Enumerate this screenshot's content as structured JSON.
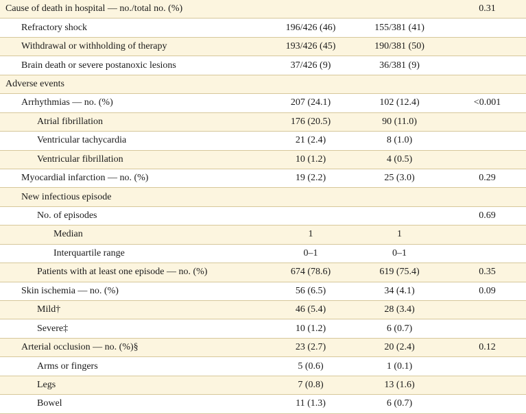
{
  "table": {
    "rows": [
      {
        "label": "Cause of death in hospital — no./total no. (%)",
        "indent": 0,
        "c1": "",
        "c2": "",
        "p": "0.31"
      },
      {
        "label": "Refractory shock",
        "indent": 1,
        "c1": "196/426 (46)",
        "c2": "155/381 (41)",
        "p": ""
      },
      {
        "label": "Withdrawal or withholding of therapy",
        "indent": 1,
        "c1": "193/426 (45)",
        "c2": "190/381 (50)",
        "p": ""
      },
      {
        "label": "Brain death or severe postanoxic lesions",
        "indent": 1,
        "c1": "37/426 (9)",
        "c2": "36/381 (9)",
        "p": ""
      },
      {
        "label": "Adverse events",
        "indent": 0,
        "c1": "",
        "c2": "",
        "p": ""
      },
      {
        "label": "Arrhythmias — no. (%)",
        "indent": 1,
        "c1": "207 (24.1)",
        "c2": "102 (12.4)",
        "p": "<0.001"
      },
      {
        "label": "Atrial fibrillation",
        "indent": 2,
        "c1": "176 (20.5)",
        "c2": "90 (11.0)",
        "p": ""
      },
      {
        "label": "Ventricular tachycardia",
        "indent": 2,
        "c1": "21 (2.4)",
        "c2": "8 (1.0)",
        "p": ""
      },
      {
        "label": "Ventricular fibrillation",
        "indent": 2,
        "c1": "10 (1.2)",
        "c2": "4 (0.5)",
        "p": ""
      },
      {
        "label": "Myocardial infarction — no. (%)",
        "indent": 1,
        "c1": "19 (2.2)",
        "c2": "25 (3.0)",
        "p": "0.29"
      },
      {
        "label": "New infectious episode",
        "indent": 1,
        "c1": "",
        "c2": "",
        "p": ""
      },
      {
        "label": "No. of episodes",
        "indent": 2,
        "c1": "",
        "c2": "",
        "p": "0.69"
      },
      {
        "label": "Median",
        "indent": 3,
        "c1": "1",
        "c2": "1",
        "p": ""
      },
      {
        "label": "Interquartile range",
        "indent": 3,
        "c1": "0–1",
        "c2": "0–1",
        "p": ""
      },
      {
        "label": "Patients with at least one episode — no. (%)",
        "indent": 2,
        "c1": "674 (78.6)",
        "c2": "619 (75.4)",
        "p": "0.35"
      },
      {
        "label": "Skin ischemia — no. (%)",
        "indent": 1,
        "c1": "56 (6.5)",
        "c2": "34 (4.1)",
        "p": "0.09"
      },
      {
        "label": "Mild†",
        "indent": 2,
        "c1": "46 (5.4)",
        "c2": "28 (3.4)",
        "p": ""
      },
      {
        "label": "Severe‡",
        "indent": 2,
        "c1": "10 (1.2)",
        "c2": "6 (0.7)",
        "p": ""
      },
      {
        "label": "Arterial occlusion — no. (%)§",
        "indent": 1,
        "c1": "23 (2.7)",
        "c2": "20 (2.4)",
        "p": "0.12"
      },
      {
        "label": "Arms or fingers",
        "indent": 2,
        "c1": "5 (0.6)",
        "c2": "1 (0.1)",
        "p": ""
      },
      {
        "label": "Legs",
        "indent": 2,
        "c1": "7 (0.8)",
        "c2": "13 (1.6)",
        "p": ""
      },
      {
        "label": "Bowel",
        "indent": 2,
        "c1": "11 (1.3)",
        "c2": "6 (0.7)",
        "p": ""
      }
    ]
  }
}
